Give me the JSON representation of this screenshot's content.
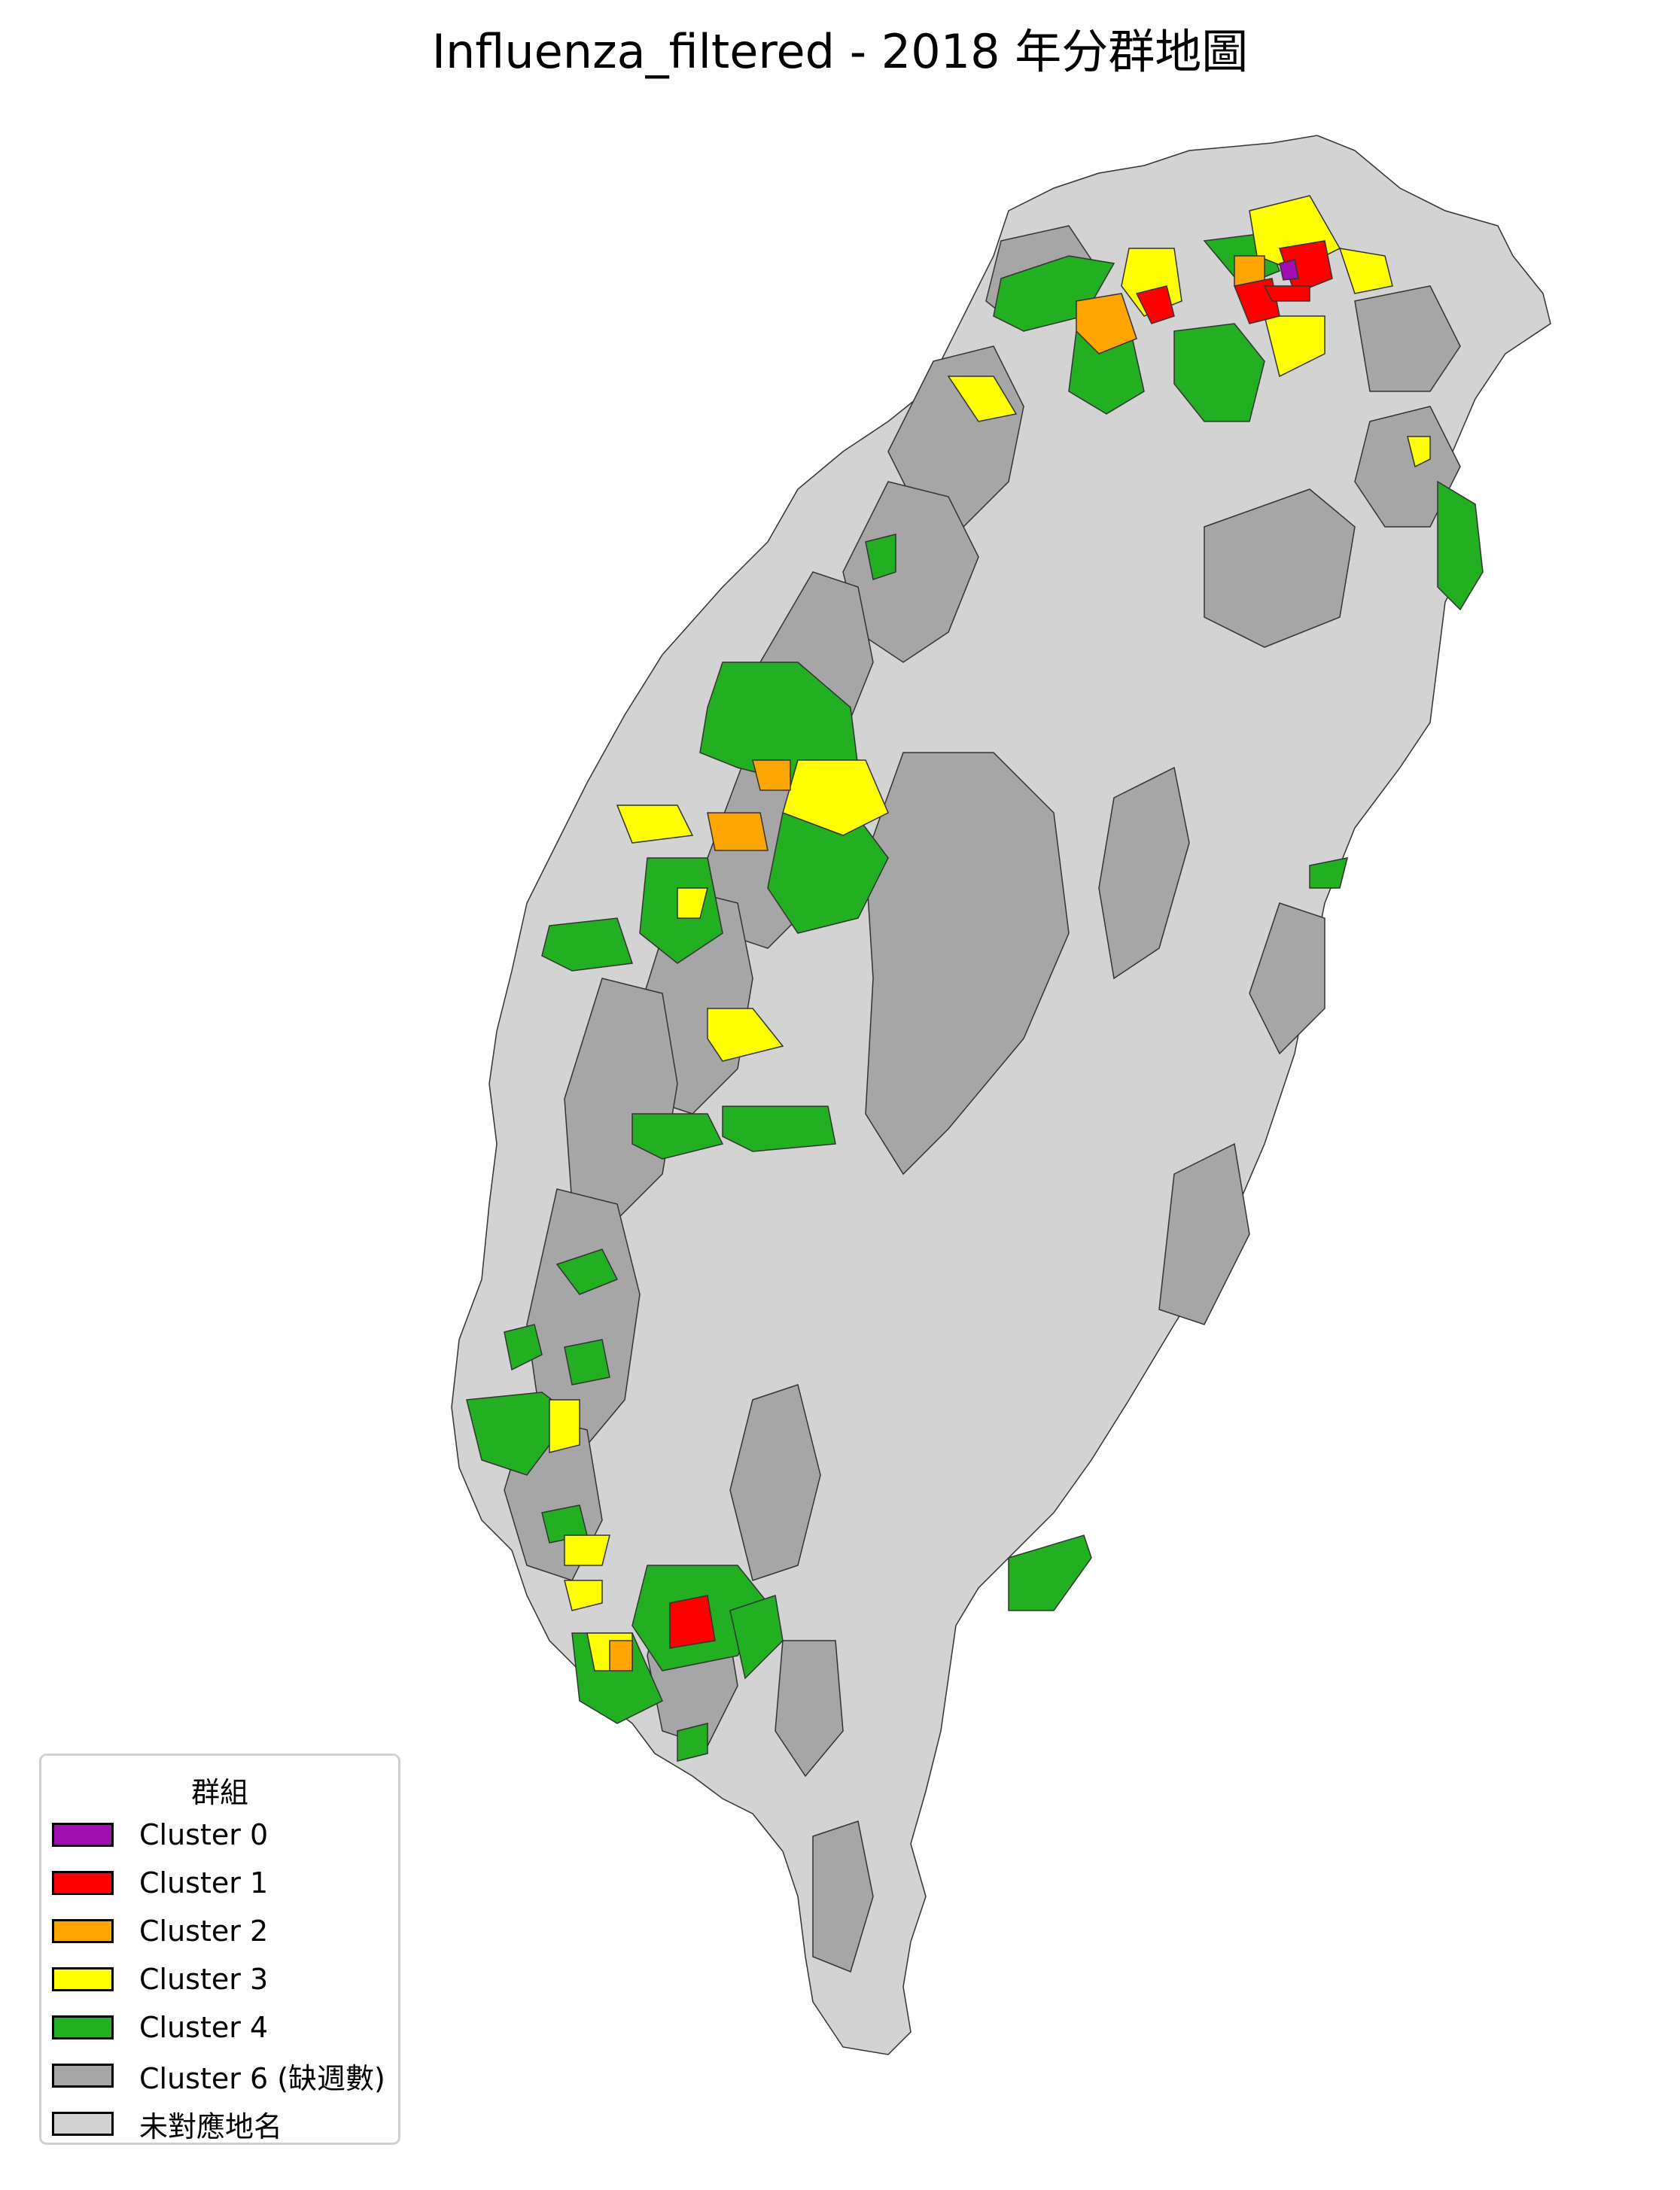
{
  "title": "Influenza_filtered - 2018 年分群地圖",
  "legend": {
    "title": "群組",
    "items": [
      {
        "label": "Cluster 0",
        "color": "#a010b0"
      },
      {
        "label": "Cluster 1",
        "color": "#ff0000"
      },
      {
        "label": "Cluster 2",
        "color": "#ffa500"
      },
      {
        "label": "Cluster 3",
        "color": "#ffff00"
      },
      {
        "label": "Cluster 4",
        "color": "#22b022"
      },
      {
        "label": "Cluster 6 (缺週數)",
        "color": "#a6a6a6"
      },
      {
        "label": "未對應地名",
        "color": "#d3d3d3"
      }
    ]
  },
  "colors": {
    "unmatched": "#d3d3d3",
    "missing": "#a6a6a6",
    "border": "#333333"
  }
}
